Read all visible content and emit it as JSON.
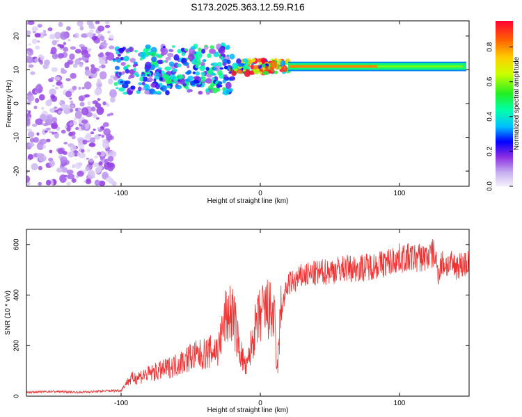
{
  "title": "S173.2025.363.12.59.R16",
  "colors": {
    "snr_line": "#ee3333",
    "frame": "#000000"
  },
  "colorbar": {
    "label": "Normalized spectral amplitude",
    "range": [
      0,
      0.95
    ],
    "ticks": [
      "0.0",
      "0.2",
      "0.4",
      "0.6",
      "0.8"
    ],
    "tick_values": [
      0.0,
      0.2,
      0.4,
      0.6,
      0.8
    ]
  },
  "chart_data": [
    {
      "type": "heatmap",
      "xlabel": "Height of straight line (km)",
      "ylabel": "Frequency (Hz)",
      "xlim": [
        -168,
        150
      ],
      "ylim": [
        -24.5,
        24.5
      ],
      "x_ticks": [
        -100,
        0,
        100
      ],
      "x_tick_labels": [
        "-100",
        "0",
        "100"
      ],
      "y_ticks": [
        -20,
        -10,
        0,
        10,
        20
      ],
      "y_tick_labels": [
        "-20",
        "-10",
        "0",
        "10",
        "20"
      ],
      "regions": [
        {
          "x": [
            -168,
            -105
          ],
          "freq": [
            -24,
            24
          ],
          "level": 0.1
        },
        {
          "x": [
            -105,
            -20
          ],
          "freq": [
            3,
            17
          ],
          "level": 0.3
        },
        {
          "x": [
            -20,
            20
          ],
          "freq": [
            9,
            13
          ],
          "level": 0.6
        },
        {
          "x": [
            20,
            148
          ],
          "freq": [
            10,
            12
          ],
          "level": 0.85
        }
      ]
    },
    {
      "type": "line",
      "xlabel": "Height of straight line (km)",
      "ylabel": "SNR (10 * v/v)",
      "xlim": [
        -168,
        150
      ],
      "ylim": [
        0,
        660
      ],
      "x_ticks": [
        -100,
        0,
        100
      ],
      "x_tick_labels": [
        "-100",
        "0",
        "100"
      ],
      "y_ticks": [
        0,
        200,
        400,
        600
      ],
      "y_tick_labels": [
        "0",
        "200",
        "400",
        "600"
      ],
      "series": [
        {
          "x": [
            -168,
            -150,
            -130,
            -110,
            -100,
            -95,
            -90,
            -80,
            -70,
            -60,
            -50,
            -40,
            -30,
            -25,
            -20,
            -15,
            -10,
            -5,
            0,
            5,
            10,
            12,
            15,
            20,
            25,
            30,
            40,
            50,
            60,
            70,
            80,
            90,
            100,
            110,
            120,
            125,
            128,
            130,
            140,
            150
          ],
          "y": [
            15,
            18,
            15,
            20,
            22,
            60,
            70,
            85,
            100,
            120,
            150,
            160,
            180,
            300,
            320,
            180,
            100,
            230,
            310,
            330,
            300,
            80,
            340,
            440,
            450,
            470,
            480,
            490,
            500,
            500,
            510,
            520,
            540,
            540,
            545,
            560,
            480,
            520,
            510,
            520
          ]
        }
      ]
    }
  ]
}
